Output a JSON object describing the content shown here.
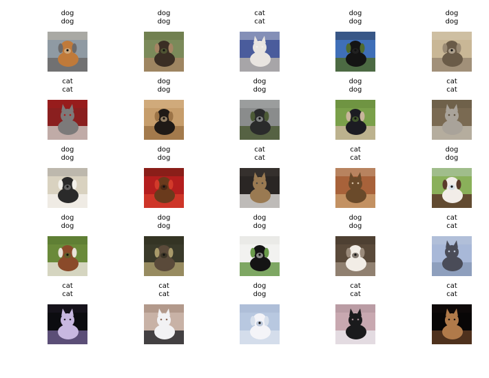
{
  "grid": {
    "cells": [
      {
        "predicted": "dog",
        "actual": "dog",
        "subject": "dog",
        "icon": "dog-photo",
        "colors": [
          "#8f9aa3",
          "#c07a3a",
          "#6c6a6a",
          "#d9c7a6"
        ]
      },
      {
        "predicted": "dog",
        "actual": "dog",
        "subject": "dog",
        "icon": "dog-photo",
        "colors": [
          "#7b8a5a",
          "#3a2e24",
          "#a58463",
          "#5e6e3e"
        ]
      },
      {
        "predicted": "cat",
        "actual": "cat",
        "subject": "cat",
        "icon": "cat-photo",
        "colors": [
          "#4a5c9c",
          "#e8e4e0",
          "#b7b1aa",
          "#f2efec"
        ]
      },
      {
        "predicted": "dog",
        "actual": "dog",
        "subject": "dog",
        "icon": "dog-photo",
        "colors": [
          "#3f6fb8",
          "#141414",
          "#4f6a2e",
          "#2a2a2a"
        ]
      },
      {
        "predicted": "dog",
        "actual": "dog",
        "subject": "dog",
        "icon": "dog-photo",
        "colors": [
          "#c9b796",
          "#6a5b48",
          "#9a8a74",
          "#d8cdbb"
        ]
      },
      {
        "predicted": "cat",
        "actual": "cat",
        "subject": "cat",
        "icon": "cat-photo",
        "colors": [
          "#8a1f1f",
          "#7c7a7a",
          "#c9c4c0",
          "#b01818"
        ]
      },
      {
        "predicted": "dog",
        "actual": "dog",
        "subject": "dog",
        "icon": "dog-photo",
        "colors": [
          "#c69d6b",
          "#1f1a16",
          "#9c7447",
          "#e3c49a"
        ]
      },
      {
        "predicted": "dog",
        "actual": "dog",
        "subject": "dog",
        "icon": "dog-photo",
        "colors": [
          "#8a8c8c",
          "#2a2b2b",
          "#4c5a36",
          "#b9bcbc"
        ]
      },
      {
        "predicted": "dog",
        "actual": "dog",
        "subject": "dog",
        "icon": "dog-photo",
        "colors": [
          "#7aa04a",
          "#1c1c22",
          "#c8b59a",
          "#5c7e34"
        ]
      },
      {
        "predicted": "cat",
        "actual": "cat",
        "subject": "cat",
        "icon": "cat-photo",
        "colors": [
          "#7a6a52",
          "#a9a39a",
          "#bfb8ac",
          "#5c4f3d"
        ]
      },
      {
        "predicted": "dog",
        "actual": "dog",
        "subject": "dog",
        "icon": "dog-photo",
        "colors": [
          "#d9d2c0",
          "#2a2a2a",
          "#f2f0ea",
          "#8a8a8a"
        ]
      },
      {
        "predicted": "dog",
        "actual": "dog",
        "subject": "dog",
        "icon": "dog-photo",
        "colors": [
          "#b41e1e",
          "#6a3a1c",
          "#d23a2a",
          "#3b1f12"
        ]
      },
      {
        "predicted": "cat",
        "actual": "cat",
        "subject": "cat",
        "icon": "cat-photo",
        "colors": [
          "#2a2624",
          "#9a7a52",
          "#d8d6d2",
          "#4a4440"
        ]
      },
      {
        "predicted": "cat",
        "actual": "cat",
        "subject": "cat",
        "icon": "cat-photo",
        "colors": [
          "#a8623a",
          "#6a4a2a",
          "#c89a6a",
          "#d8c2a6"
        ]
      },
      {
        "predicted": "dog",
        "actual": "dog",
        "subject": "dog",
        "icon": "dog-photo",
        "colors": [
          "#8ab05a",
          "#f2ede8",
          "#5a3a2a",
          "#c8d8e8"
        ]
      },
      {
        "predicted": "dog",
        "actual": "dog",
        "subject": "dog",
        "icon": "dog-photo",
        "colors": [
          "#6a8a3a",
          "#8a4a2a",
          "#e8e2d8",
          "#4a6a2a"
        ]
      },
      {
        "predicted": "dog",
        "actual": "dog",
        "subject": "dog",
        "icon": "dog-photo",
        "colors": [
          "#3a3a2a",
          "#5a4a3a",
          "#a89a6a",
          "#2a2a1a"
        ]
      },
      {
        "predicted": "dog",
        "actual": "dog",
        "subject": "dog",
        "icon": "dog-photo",
        "colors": [
          "#f2f2f0",
          "#141414",
          "#6a9a4a",
          "#dcdcd8"
        ]
      },
      {
        "predicted": "dog",
        "actual": "dog",
        "subject": "dog",
        "icon": "dog-photo",
        "colors": [
          "#5a4a3a",
          "#f2ede6",
          "#9a8a7a",
          "#3a2e24"
        ]
      },
      {
        "predicted": "cat",
        "actual": "cat",
        "subject": "cat",
        "icon": "cat-photo",
        "colors": [
          "#a8b8d8",
          "#4a4c58",
          "#8a9ab8",
          "#c2ccdc"
        ]
      },
      {
        "predicted": "cat",
        "actual": "cat",
        "subject": "cat",
        "icon": "cat-photo",
        "colors": [
          "#0c0c10",
          "#c8b8e0",
          "#6a5a8a",
          "#2a2230"
        ]
      },
      {
        "predicted": "cat",
        "actual": "cat",
        "subject": "cat",
        "icon": "cat-photo",
        "colors": [
          "#c8b2a6",
          "#f2f2f4",
          "#2c2c30",
          "#8a6a5a"
        ]
      },
      {
        "predicted": "dog",
        "actual": "dog",
        "subject": "dog",
        "icon": "dog-photo",
        "colors": [
          "#b8c8e0",
          "#f4f4f8",
          "#d8e0ec",
          "#9aacc8"
        ]
      },
      {
        "predicted": "cat",
        "actual": "cat",
        "subject": "cat",
        "icon": "cat-photo",
        "colors": [
          "#c8a8b0",
          "#1a1a1c",
          "#e8e4ea",
          "#a08890"
        ]
      },
      {
        "predicted": "cat",
        "actual": "cat",
        "subject": "cat",
        "icon": "cat-photo",
        "colors": [
          "#080606",
          "#b07a4a",
          "#5a3a22",
          "#1a1210"
        ]
      }
    ]
  }
}
